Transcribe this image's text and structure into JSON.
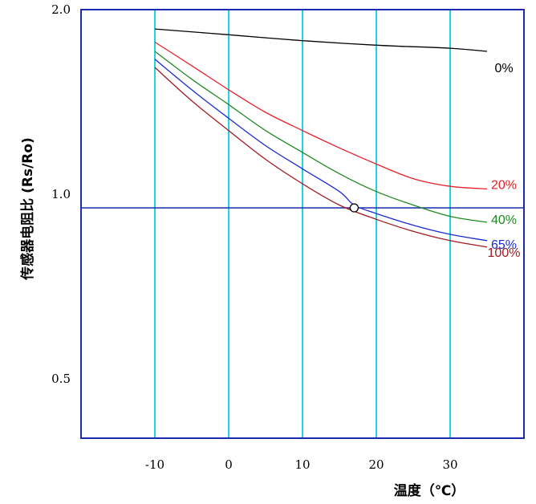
{
  "chart_data": {
    "type": "line",
    "xlabel": "温度（℃）",
    "ylabel": "传感器电阻比 (Rs/Ro)",
    "x_ticks": [
      "-10",
      "0",
      "10",
      "20",
      "30"
    ],
    "y_ticks": [
      "2.0",
      "1.0",
      "0.5"
    ],
    "xlim": [
      -20,
      40
    ],
    "ylim": [
      0.4,
      2.0
    ],
    "y_scale": "log",
    "grid": {
      "vertical": true,
      "vertical_color": "#22d3e0"
    },
    "reference_line": {
      "y": 0.95,
      "color": "#1a2bb0"
    },
    "marker": {
      "x": 17,
      "y": 0.95,
      "shape": "open-circle"
    },
    "series": [
      {
        "name": "0%",
        "color": "#000000",
        "x": [
          -10,
          0,
          10,
          20,
          30,
          35
        ],
        "y": [
          1.86,
          1.82,
          1.78,
          1.75,
          1.73,
          1.71
        ]
      },
      {
        "name": "20%",
        "color": "#e8202a",
        "x": [
          -10,
          -5,
          0,
          5,
          10,
          15,
          20,
          25,
          30,
          35
        ],
        "y": [
          1.77,
          1.62,
          1.48,
          1.36,
          1.27,
          1.19,
          1.12,
          1.06,
          1.03,
          1.02
        ]
      },
      {
        "name": "40%",
        "color": "#1e8a22",
        "x": [
          -10,
          -5,
          0,
          5,
          10,
          15,
          20,
          25,
          30,
          35
        ],
        "y": [
          1.71,
          1.54,
          1.4,
          1.27,
          1.17,
          1.08,
          1.01,
          0.96,
          0.92,
          0.9
        ]
      },
      {
        "name": "65%",
        "color": "#1a2bd0",
        "x": [
          -10,
          -5,
          0,
          5,
          10,
          15,
          17,
          20,
          25,
          30,
          35
        ],
        "y": [
          1.66,
          1.48,
          1.33,
          1.2,
          1.1,
          1.01,
          0.96,
          0.93,
          0.89,
          0.86,
          0.84
        ]
      },
      {
        "name": "100%",
        "color": "#a01a22",
        "x": [
          -10,
          -5,
          0,
          5,
          10,
          15,
          20,
          25,
          30,
          35
        ],
        "y": [
          1.61,
          1.42,
          1.27,
          1.14,
          1.04,
          0.96,
          0.91,
          0.87,
          0.84,
          0.82
        ]
      }
    ]
  }
}
